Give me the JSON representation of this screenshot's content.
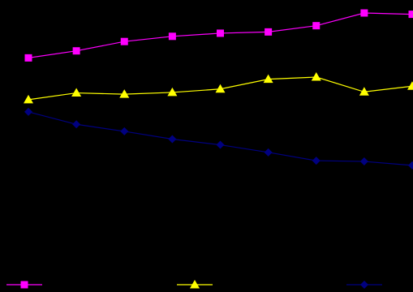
{
  "chart_data": {
    "type": "line",
    "background": "#000000",
    "title": "",
    "xlabel": "",
    "ylabel": "",
    "grid": false,
    "legend_position": "bottom",
    "x": [
      1,
      2,
      3,
      4,
      5,
      6,
      7,
      8,
      9
    ],
    "ylim": [
      0,
      100
    ],
    "series": [
      {
        "color": "#FF00FF",
        "marker": "square",
        "values": [
          80.2,
          82.9,
          86.5,
          88.5,
          89.7,
          90.2,
          92.6,
          97.5,
          97.0
        ]
      },
      {
        "color": "#FFFF00",
        "marker": "triangle",
        "values": [
          64.1,
          66.7,
          66.2,
          66.9,
          68.2,
          72.0,
          72.8,
          67.1,
          69.3
        ]
      },
      {
        "color": "#000080",
        "marker": "diamond",
        "values": [
          59.4,
          54.6,
          51.9,
          48.9,
          46.7,
          43.8,
          40.6,
          40.3,
          38.8
        ]
      }
    ]
  }
}
